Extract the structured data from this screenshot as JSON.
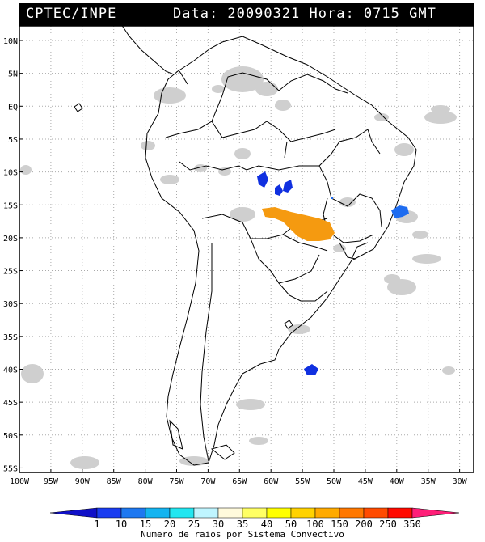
{
  "header": {
    "brand": "CPTEC/INPE",
    "meta": "Data: 20090321 Hora: 0715 GMT"
  },
  "map": {
    "lat_labels": [
      "10N",
      "5N",
      "EQ",
      "5S",
      "10S",
      "15S",
      "20S",
      "25S",
      "30S",
      "35S",
      "40S",
      "45S",
      "50S",
      "55S"
    ],
    "lon_labels": [
      "100W",
      "95W",
      "90W",
      "85W",
      "80W",
      "75W",
      "70W",
      "65W",
      "60W",
      "55W",
      "50W",
      "45W",
      "40W",
      "35W",
      "30W"
    ],
    "lat_range": [
      10,
      -55
    ],
    "lon_range": [
      -100,
      -30
    ],
    "gridlines": true,
    "colors": {
      "land_outline": "#000000",
      "cloud": "#c8c8c8",
      "dark_blue": "#1030e0",
      "blue": "#1e6cf0",
      "orange": "#f59a10"
    }
  },
  "colorbar": {
    "ticks": [
      "1",
      "10",
      "15",
      "20",
      "25",
      "30",
      "35",
      "40",
      "50",
      "100",
      "150",
      "200",
      "250",
      "350"
    ],
    "colors": [
      "#1010c8",
      "#1a3cf0",
      "#1e78f0",
      "#14b4f0",
      "#22e6f0",
      "#bff5ff",
      "#fffadc",
      "#ffff64",
      "#ffff00",
      "#ffd200",
      "#ffaa00",
      "#ff7800",
      "#ff4b00",
      "#ff0a00",
      "#ff1e78"
    ],
    "title": "Numero de raios por Sistema Convectivo"
  }
}
